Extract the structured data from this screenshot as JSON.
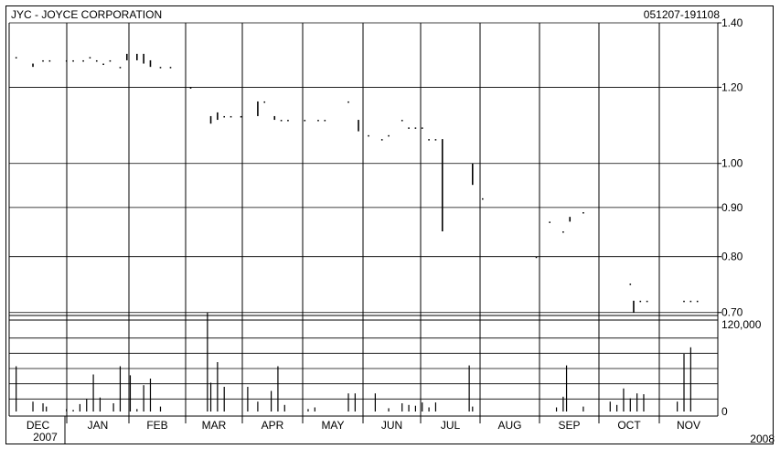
{
  "header": {
    "title": "JYC - JOYCE CORPORATION",
    "date_range": "051207-191108"
  },
  "chart_data": [
    {
      "type": "bar",
      "title": "JYC - JOYCE CORPORATION",
      "scale": "log",
      "ylim": [
        0.695,
        1.4
      ],
      "y_ticks": [
        "1.40",
        "1.20",
        "1.00",
        "0.90",
        "0.80",
        "0.70"
      ],
      "y_tick_values": [
        1.4,
        1.2,
        1.0,
        0.9,
        0.8,
        0.7
      ],
      "x_months": [
        "DEC",
        "JAN",
        "FEB",
        "MAR",
        "APR",
        "MAY",
        "JUN",
        "JUL",
        "AUG",
        "SEP",
        "OCT",
        "NOV"
      ],
      "x_years": [
        "2007",
        "2008"
      ],
      "grid": true,
      "bars": [
        {
          "d": 0.5,
          "lo": 1.29,
          "hi": 1.29
        },
        {
          "d": 3,
          "lo": 1.26,
          "hi": 1.27
        },
        {
          "d": 4.5,
          "lo": 1.28,
          "hi": 1.28
        },
        {
          "d": 5.5,
          "lo": 1.28,
          "hi": 1.28
        },
        {
          "d": 8,
          "lo": 1.28,
          "hi": 1.28
        },
        {
          "d": 9,
          "lo": 1.28,
          "hi": 1.28
        },
        {
          "d": 10.5,
          "lo": 1.28,
          "hi": 1.28
        },
        {
          "d": 11.5,
          "lo": 1.29,
          "hi": 1.29
        },
        {
          "d": 12.5,
          "lo": 1.28,
          "hi": 1.28
        },
        {
          "d": 13.5,
          "lo": 1.27,
          "hi": 1.27
        },
        {
          "d": 14.5,
          "lo": 1.28,
          "hi": 1.28
        },
        {
          "d": 16,
          "lo": 1.26,
          "hi": 1.26
        },
        {
          "d": 17,
          "lo": 1.28,
          "hi": 1.3
        },
        {
          "d": 18.5,
          "lo": 1.28,
          "hi": 1.3
        },
        {
          "d": 19.5,
          "lo": 1.27,
          "hi": 1.3
        },
        {
          "d": 20.5,
          "lo": 1.26,
          "hi": 1.28
        },
        {
          "d": 22,
          "lo": 1.26,
          "hi": 1.26
        },
        {
          "d": 23.5,
          "lo": 1.26,
          "hi": 1.26
        },
        {
          "d": 26.5,
          "lo": 1.2,
          "hi": 1.2
        },
        {
          "d": 29.5,
          "lo": 1.1,
          "hi": 1.12
        },
        {
          "d": 30.5,
          "lo": 1.11,
          "hi": 1.13
        },
        {
          "d": 31.5,
          "lo": 1.12,
          "hi": 1.12
        },
        {
          "d": 32.5,
          "lo": 1.12,
          "hi": 1.12
        },
        {
          "d": 34,
          "lo": 1.12,
          "hi": 1.12
        },
        {
          "d": 36.5,
          "lo": 1.12,
          "hi": 1.16
        },
        {
          "d": 37.5,
          "lo": 1.16,
          "hi": 1.16
        },
        {
          "d": 39,
          "lo": 1.11,
          "hi": 1.12
        },
        {
          "d": 40,
          "lo": 1.11,
          "hi": 1.11
        },
        {
          "d": 41,
          "lo": 1.11,
          "hi": 1.11
        },
        {
          "d": 43.5,
          "lo": 1.11,
          "hi": 1.11
        },
        {
          "d": 45.5,
          "lo": 1.11,
          "hi": 1.11
        },
        {
          "d": 46.5,
          "lo": 1.11,
          "hi": 1.11
        },
        {
          "d": 50,
          "lo": 1.16,
          "hi": 1.16
        },
        {
          "d": 51.5,
          "lo": 1.08,
          "hi": 1.11
        },
        {
          "d": 53,
          "lo": 1.07,
          "hi": 1.07
        },
        {
          "d": 55,
          "lo": 1.06,
          "hi": 1.06
        },
        {
          "d": 56,
          "lo": 1.07,
          "hi": 1.07
        },
        {
          "d": 58,
          "lo": 1.11,
          "hi": 1.11
        },
        {
          "d": 59,
          "lo": 1.09,
          "hi": 1.09
        },
        {
          "d": 60,
          "lo": 1.09,
          "hi": 1.09
        },
        {
          "d": 61,
          "lo": 1.09,
          "hi": 1.09
        },
        {
          "d": 62,
          "lo": 1.06,
          "hi": 1.06
        },
        {
          "d": 63,
          "lo": 1.06,
          "hi": 1.06
        },
        {
          "d": 64,
          "lo": 0.85,
          "hi": 1.06
        },
        {
          "d": 68.5,
          "lo": 0.95,
          "hi": 1.0
        },
        {
          "d": 70,
          "lo": 0.92,
          "hi": 0.92
        },
        {
          "d": 78,
          "lo": 0.8,
          "hi": 0.8
        },
        {
          "d": 80,
          "lo": 0.87,
          "hi": 0.87
        },
        {
          "d": 82,
          "lo": 0.85,
          "hi": 0.85
        },
        {
          "d": 83,
          "lo": 0.87,
          "hi": 0.88
        },
        {
          "d": 85,
          "lo": 0.89,
          "hi": 0.89
        },
        {
          "d": 92,
          "lo": 0.75,
          "hi": 0.75
        },
        {
          "d": 92.5,
          "lo": 0.7,
          "hi": 0.72
        },
        {
          "d": 93.5,
          "lo": 0.72,
          "hi": 0.72
        },
        {
          "d": 94.5,
          "lo": 0.72,
          "hi": 0.72
        },
        {
          "d": 100,
          "lo": 0.72,
          "hi": 0.72
        },
        {
          "d": 101,
          "lo": 0.72,
          "hi": 0.72
        },
        {
          "d": 102,
          "lo": 0.72,
          "hi": 0.72
        }
      ]
    },
    {
      "type": "bar",
      "ylim": [
        0,
        120000
      ],
      "y_ticks": [
        "120,000",
        "0"
      ],
      "y_tick_values": [
        120000,
        0
      ],
      "grid": true,
      "values": [
        {
          "d": 0.5,
          "v": 55000
        },
        {
          "d": 3,
          "v": 12000
        },
        {
          "d": 4.5,
          "v": 10000
        },
        {
          "d": 5,
          "v": 6000
        },
        {
          "d": 8,
          "v": 3000
        },
        {
          "d": 9,
          "v": 2000
        },
        {
          "d": 10,
          "v": 9000
        },
        {
          "d": 11,
          "v": 15000
        },
        {
          "d": 12,
          "v": 45000
        },
        {
          "d": 13,
          "v": 17000
        },
        {
          "d": 15,
          "v": 10000
        },
        {
          "d": 16,
          "v": 55000
        },
        {
          "d": 17.5,
          "v": 44000
        },
        {
          "d": 18.5,
          "v": 3000
        },
        {
          "d": 19.5,
          "v": 32000
        },
        {
          "d": 20.5,
          "v": 40000
        },
        {
          "d": 22,
          "v": 6000
        },
        {
          "d": 29,
          "v": 120000
        },
        {
          "d": 29.5,
          "v": 35000
        },
        {
          "d": 30.5,
          "v": 60000
        },
        {
          "d": 31.5,
          "v": 30000
        },
        {
          "d": 35,
          "v": 30000
        },
        {
          "d": 36.5,
          "v": 12000
        },
        {
          "d": 38.5,
          "v": 25000
        },
        {
          "d": 39.5,
          "v": 55000
        },
        {
          "d": 40.5,
          "v": 8000
        },
        {
          "d": 44,
          "v": 3000
        },
        {
          "d": 45,
          "v": 5000
        },
        {
          "d": 50,
          "v": 22000
        },
        {
          "d": 51,
          "v": 22000
        },
        {
          "d": 54,
          "v": 22000
        },
        {
          "d": 56,
          "v": 4000
        },
        {
          "d": 58,
          "v": 10000
        },
        {
          "d": 59,
          "v": 8000
        },
        {
          "d": 60,
          "v": 7000
        },
        {
          "d": 61,
          "v": 11000
        },
        {
          "d": 62,
          "v": 5000
        },
        {
          "d": 63,
          "v": 11000
        },
        {
          "d": 68,
          "v": 56000
        },
        {
          "d": 68.5,
          "v": 6000
        },
        {
          "d": 81,
          "v": 5000
        },
        {
          "d": 82,
          "v": 18000
        },
        {
          "d": 82.5,
          "v": 56000
        },
        {
          "d": 85,
          "v": 6000
        },
        {
          "d": 89,
          "v": 12000
        },
        {
          "d": 90,
          "v": 8000
        },
        {
          "d": 91,
          "v": 28000
        },
        {
          "d": 92,
          "v": 16000
        },
        {
          "d": 93,
          "v": 22000
        },
        {
          "d": 94,
          "v": 21000
        },
        {
          "d": 99,
          "v": 12000
        },
        {
          "d": 100,
          "v": 70000
        },
        {
          "d": 101,
          "v": 78000
        }
      ]
    }
  ]
}
